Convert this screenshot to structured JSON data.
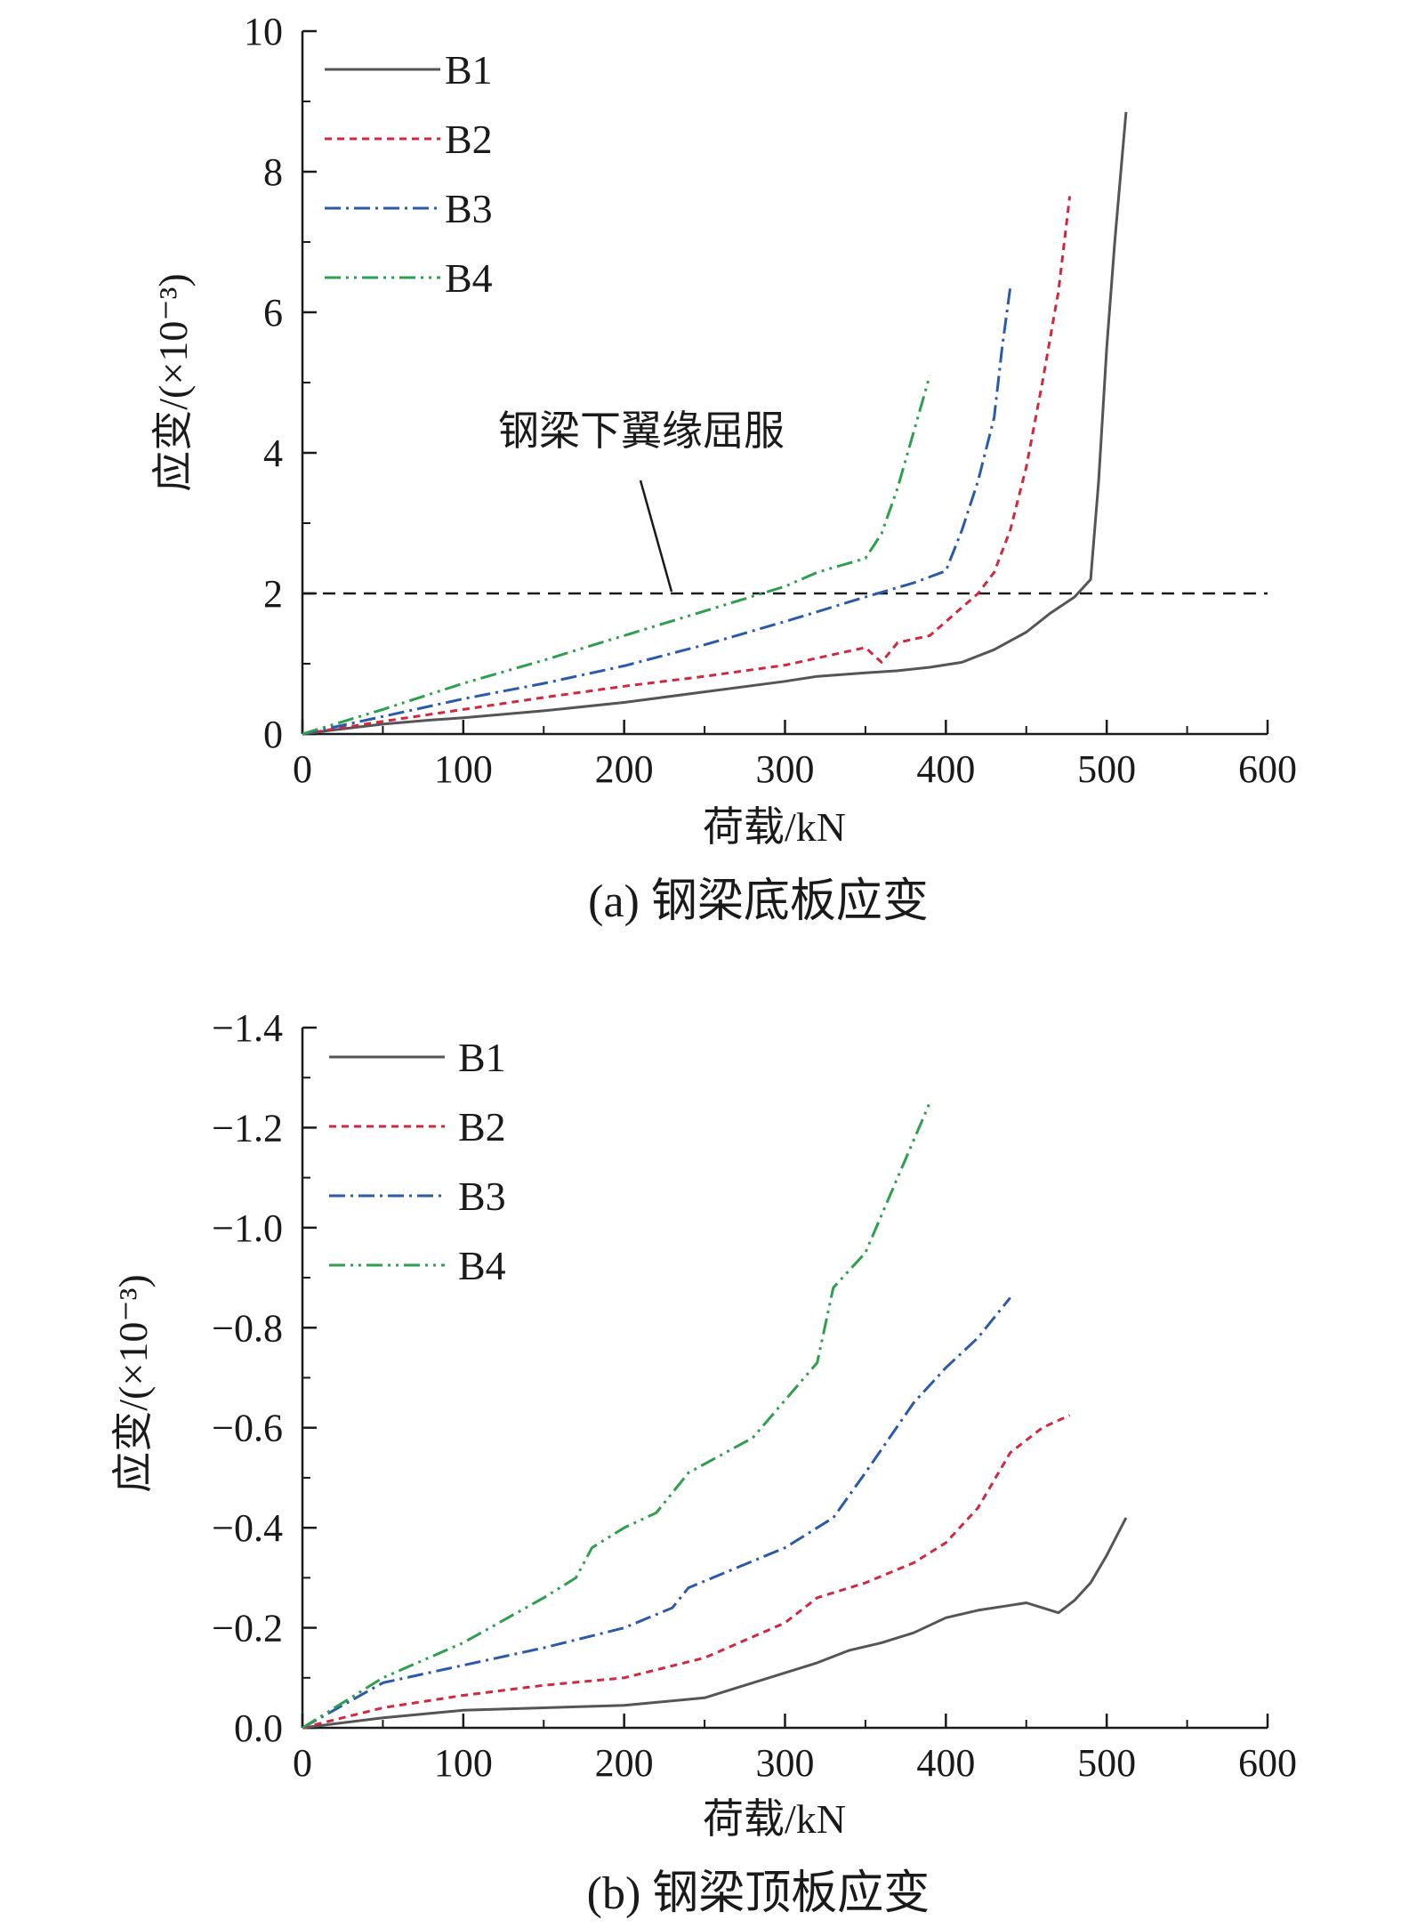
{
  "chart_data": [
    {
      "type": "line",
      "caption": "(a) 钢梁底板应变",
      "xlabel": "荷载/kN",
      "ylabel": "应变/(×10⁻³)",
      "xlim": [
        0,
        600
      ],
      "ylim": [
        0,
        10
      ],
      "xticks": [
        "0",
        "100",
        "200",
        "300",
        "400",
        "500",
        "600"
      ],
      "yticks": [
        "0",
        "2",
        "4",
        "6",
        "8",
        "10"
      ],
      "legend_position": "top-left",
      "reference_line": {
        "y": 2.0,
        "style": "dashed",
        "color": "#1a1a1a",
        "label": "钢梁下翼缘屈服"
      },
      "series": [
        {
          "name": "B1",
          "color": "#555555",
          "dash": "solid",
          "x": [
            0,
            20,
            50,
            80,
            100,
            150,
            200,
            250,
            300,
            320,
            350,
            370,
            390,
            410,
            430,
            450,
            465,
            480,
            490,
            495,
            500,
            505,
            512
          ],
          "y": [
            0,
            0.06,
            0.14,
            0.2,
            0.23,
            0.33,
            0.45,
            0.6,
            0.75,
            0.82,
            0.87,
            0.9,
            0.95,
            1.02,
            1.2,
            1.45,
            1.72,
            1.95,
            2.2,
            3.6,
            5.5,
            7.0,
            8.85
          ]
        },
        {
          "name": "B2",
          "color": "#d0283e",
          "dash": "8,6",
          "x": [
            0,
            50,
            100,
            150,
            200,
            250,
            300,
            350,
            360,
            370,
            390,
            410,
            420,
            430,
            440,
            450,
            460,
            470,
            477
          ],
          "y": [
            0,
            0.18,
            0.35,
            0.52,
            0.68,
            0.82,
            0.98,
            1.23,
            1.02,
            1.3,
            1.4,
            1.8,
            2.0,
            2.3,
            2.9,
            3.8,
            5.0,
            6.3,
            7.65
          ]
        },
        {
          "name": "B3",
          "color": "#2a5aa8",
          "dash": "18,6,3,6",
          "x": [
            0,
            50,
            100,
            150,
            200,
            250,
            300,
            350,
            380,
            400,
            410,
            420,
            430,
            435,
            440
          ],
          "y": [
            0,
            0.25,
            0.5,
            0.72,
            0.97,
            1.27,
            1.6,
            1.95,
            2.15,
            2.32,
            2.9,
            3.6,
            4.5,
            5.5,
            6.35
          ]
        },
        {
          "name": "B4",
          "color": "#2e9e4f",
          "dash": "18,6,3,6,3,6",
          "x": [
            0,
            50,
            100,
            150,
            200,
            250,
            300,
            320,
            350,
            360,
            370,
            380,
            390
          ],
          "y": [
            0,
            0.35,
            0.72,
            1.05,
            1.4,
            1.75,
            2.1,
            2.3,
            2.5,
            2.85,
            3.5,
            4.3,
            5.1
          ]
        }
      ]
    },
    {
      "type": "line",
      "caption": "(b) 钢梁顶板应变",
      "xlabel": "荷载/kN",
      "ylabel": "应变/(×10⁻³)",
      "xlim": [
        0,
        600
      ],
      "ylim": [
        0,
        -1.4
      ],
      "xticks": [
        "0",
        "100",
        "200",
        "300",
        "400",
        "500",
        "600"
      ],
      "yticks": [
        "0.0",
        "−0.2",
        "−0.4",
        "−0.6",
        "−0.8",
        "−1.0",
        "−1.2",
        "−1.4"
      ],
      "legend_position": "top-left",
      "series": [
        {
          "name": "B1",
          "color": "#555555",
          "dash": "solid",
          "x": [
            0,
            50,
            100,
            150,
            200,
            250,
            280,
            300,
            320,
            340,
            360,
            380,
            400,
            420,
            440,
            450,
            460,
            470,
            480,
            490,
            500,
            512
          ],
          "y": [
            0,
            -0.02,
            -0.035,
            -0.04,
            -0.045,
            -0.06,
            -0.09,
            -0.11,
            -0.13,
            -0.155,
            -0.17,
            -0.19,
            -0.22,
            -0.235,
            -0.245,
            -0.25,
            -0.24,
            -0.23,
            -0.255,
            -0.29,
            -0.345,
            -0.42
          ]
        },
        {
          "name": "B2",
          "color": "#d0283e",
          "dash": "8,6",
          "x": [
            0,
            50,
            100,
            150,
            200,
            250,
            300,
            320,
            350,
            380,
            400,
            420,
            440,
            460,
            477
          ],
          "y": [
            0,
            -0.04,
            -0.065,
            -0.085,
            -0.1,
            -0.14,
            -0.21,
            -0.26,
            -0.29,
            -0.33,
            -0.37,
            -0.44,
            -0.55,
            -0.6,
            -0.625
          ]
        },
        {
          "name": "B3",
          "color": "#2a5aa8",
          "dash": "18,6,3,6",
          "x": [
            0,
            50,
            100,
            150,
            200,
            230,
            240,
            300,
            330,
            350,
            380,
            400,
            420,
            440
          ],
          "y": [
            0,
            -0.09,
            -0.125,
            -0.16,
            -0.2,
            -0.24,
            -0.28,
            -0.36,
            -0.42,
            -0.51,
            -0.65,
            -0.72,
            -0.78,
            -0.86
          ]
        },
        {
          "name": "B4",
          "color": "#2e9e4f",
          "dash": "18,6,3,6,3,6",
          "x": [
            0,
            50,
            100,
            150,
            170,
            180,
            200,
            220,
            240,
            280,
            320,
            330,
            350,
            370,
            390
          ],
          "y": [
            0,
            -0.1,
            -0.17,
            -0.26,
            -0.3,
            -0.36,
            -0.4,
            -0.43,
            -0.51,
            -0.58,
            -0.73,
            -0.88,
            -0.95,
            -1.1,
            -1.25
          ]
        }
      ]
    }
  ]
}
